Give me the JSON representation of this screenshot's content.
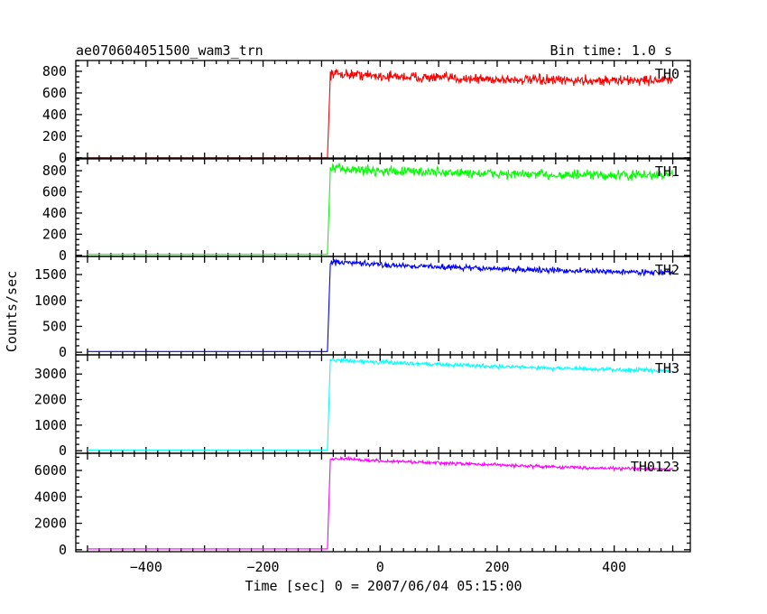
{
  "header": {
    "left": "ae070604051500_wam3_trn",
    "right": "Bin time: 1.0 s"
  },
  "chart_data": {
    "type": "line",
    "xlabel": "Time [sec] 0 = 2007/06/04 05:15:00",
    "ylabel": "Counts/sec",
    "xlim": [
      -520,
      530
    ],
    "x_ticks": [
      -400,
      -200,
      0,
      200,
      400
    ],
    "x_tick_labels": [
      "−400",
      "−200",
      "0",
      "200",
      "400"
    ],
    "series": [
      {
        "name": "TH0",
        "color": "#ff0000",
        "ylim": [
          -10,
          900
        ],
        "y_ticks": [
          0,
          200,
          400,
          600,
          800
        ],
        "y_tick_labels": [
          "0",
          "200",
          "400",
          "600",
          "800"
        ],
        "points": [
          [
            -500,
            0
          ],
          [
            -90,
            0
          ],
          [
            -86,
            620
          ],
          [
            -85,
            780
          ],
          [
            -60,
            775
          ],
          [
            0,
            755
          ],
          [
            100,
            740
          ],
          [
            200,
            725
          ],
          [
            300,
            715
          ],
          [
            400,
            715
          ],
          [
            500,
            720
          ]
        ],
        "noise": 35
      },
      {
        "name": "TH1",
        "color": "#00ff00",
        "ylim": [
          -10,
          920
        ],
        "y_ticks": [
          0,
          200,
          400,
          600,
          800
        ],
        "y_tick_labels": [
          "0",
          "200",
          "400",
          "600",
          "800"
        ],
        "points": [
          [
            -500,
            10
          ],
          [
            -90,
            10
          ],
          [
            -86,
            650
          ],
          [
            -85,
            820
          ],
          [
            -60,
            815
          ],
          [
            0,
            800
          ],
          [
            100,
            785
          ],
          [
            200,
            770
          ],
          [
            300,
            760
          ],
          [
            400,
            755
          ],
          [
            500,
            760
          ]
        ],
        "noise": 35
      },
      {
        "name": "TH2",
        "color": "#0000ff",
        "ylim": [
          -50,
          1850
        ],
        "y_ticks": [
          0,
          500,
          1000,
          1500
        ],
        "y_tick_labels": [
          "0",
          "500",
          "1000",
          "1500"
        ],
        "points": [
          [
            -500,
            15
          ],
          [
            -90,
            15
          ],
          [
            -86,
            1400
          ],
          [
            -85,
            1740
          ],
          [
            -60,
            1730
          ],
          [
            0,
            1690
          ],
          [
            100,
            1650
          ],
          [
            200,
            1610
          ],
          [
            300,
            1580
          ],
          [
            400,
            1555
          ],
          [
            500,
            1540
          ]
        ],
        "noise": 40
      },
      {
        "name": "TH3",
        "color": "#00ffff",
        "ylim": [
          -100,
          3750
        ],
        "y_ticks": [
          0,
          1000,
          2000,
          3000
        ],
        "y_tick_labels": [
          "0",
          "1000",
          "2000",
          "3000"
        ],
        "points": [
          [
            -500,
            30
          ],
          [
            -90,
            30
          ],
          [
            -86,
            2900
          ],
          [
            -85,
            3550
          ],
          [
            -60,
            3530
          ],
          [
            0,
            3460
          ],
          [
            100,
            3380
          ],
          [
            200,
            3300
          ],
          [
            300,
            3230
          ],
          [
            400,
            3170
          ],
          [
            500,
            3130
          ]
        ],
        "noise": 60
      },
      {
        "name": "TH0123",
        "color": "#ff00ff",
        "ylim": [
          -150,
          7300
        ],
        "y_ticks": [
          0,
          2000,
          4000,
          6000
        ],
        "y_tick_labels": [
          "0",
          "2000",
          "4000",
          "6000"
        ],
        "points": [
          [
            -500,
            60
          ],
          [
            -90,
            60
          ],
          [
            -86,
            5600
          ],
          [
            -85,
            6900
          ],
          [
            -60,
            6870
          ],
          [
            0,
            6720
          ],
          [
            100,
            6560
          ],
          [
            200,
            6420
          ],
          [
            300,
            6270
          ],
          [
            400,
            6160
          ],
          [
            500,
            6080
          ]
        ],
        "noise": 90
      }
    ]
  }
}
